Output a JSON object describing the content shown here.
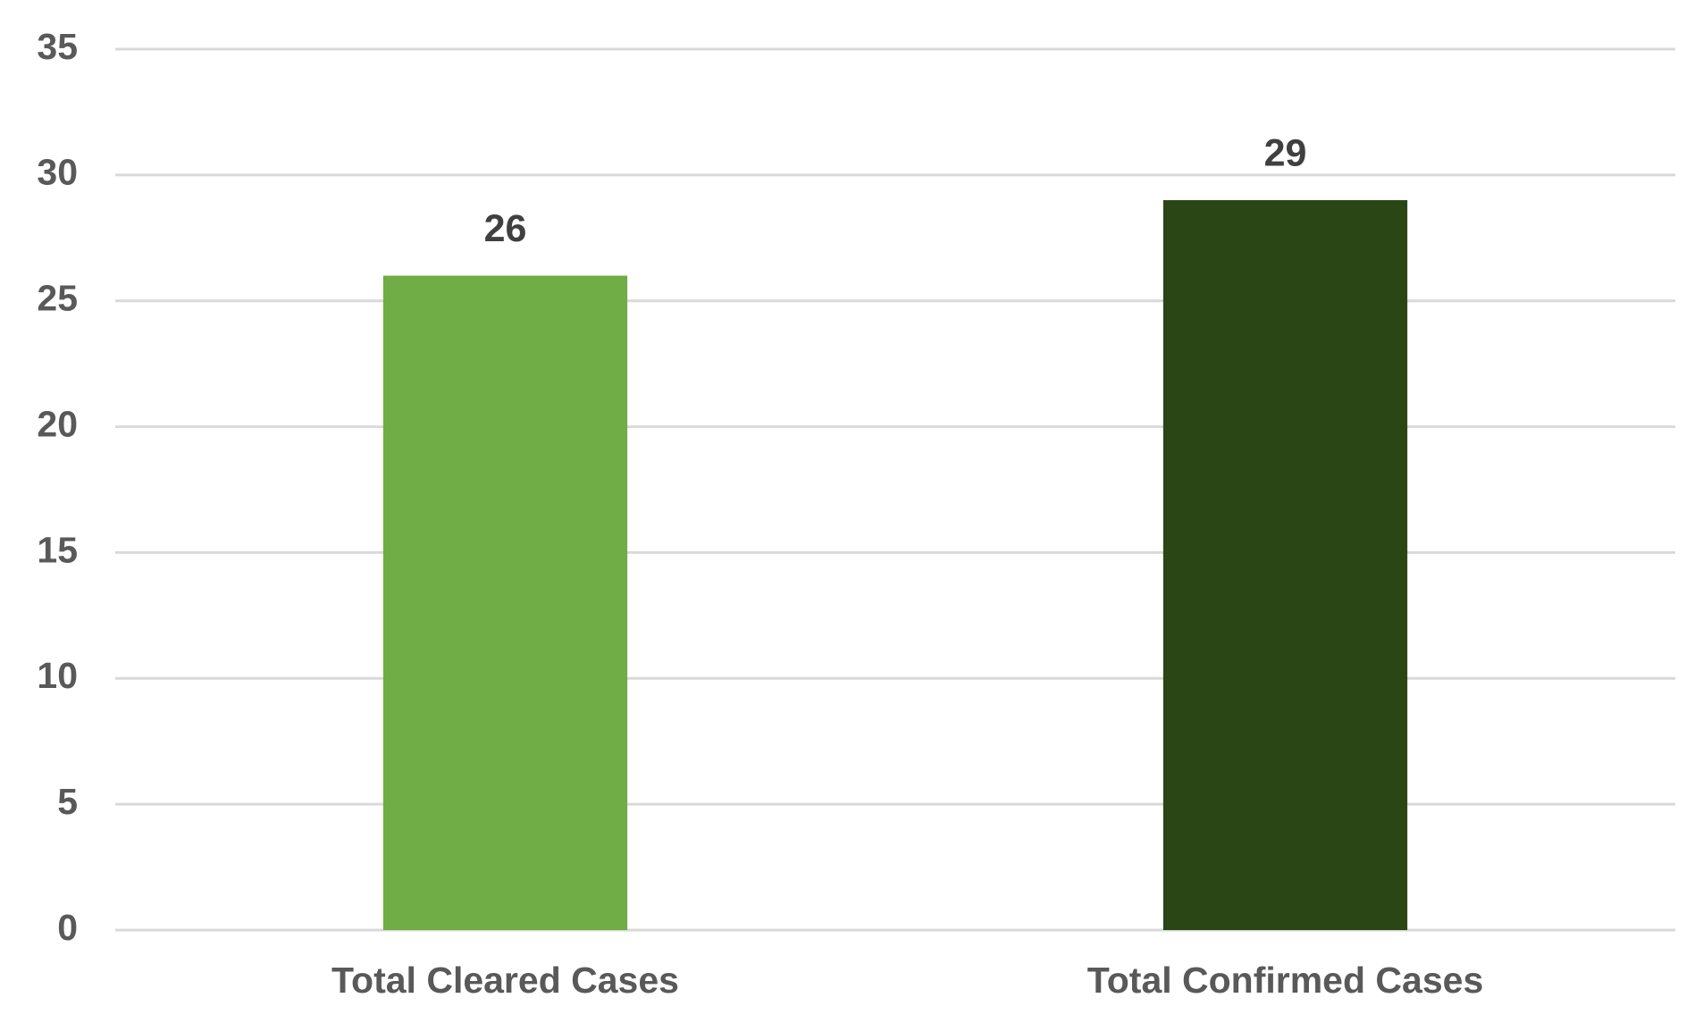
{
  "chart_data": {
    "type": "bar",
    "categories": [
      "Total Cleared Cases",
      "Total Confirmed Cases"
    ],
    "values": [
      26,
      29
    ],
    "colors": [
      "#70ad47",
      "#294614"
    ],
    "ylim": [
      0,
      35
    ],
    "yticks": [
      0,
      5,
      10,
      15,
      20,
      25,
      30,
      35
    ],
    "grid": true
  }
}
